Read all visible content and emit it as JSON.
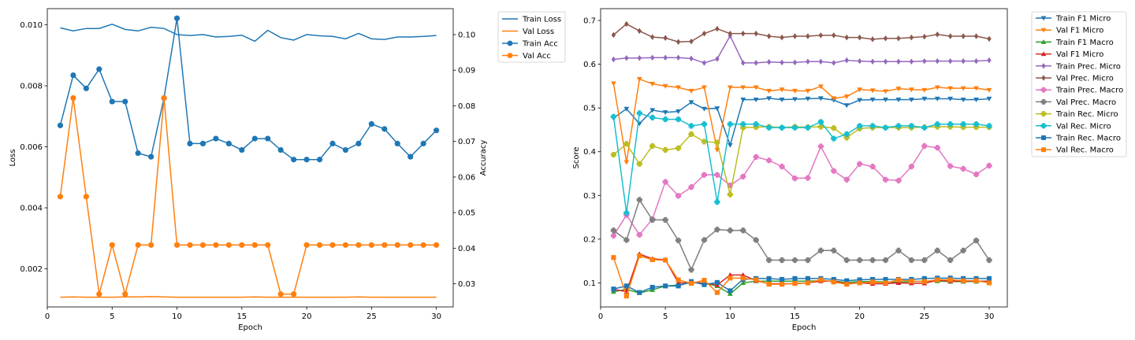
{
  "chart_data": [
    {
      "type": "line",
      "xlabel": "Epoch",
      "ylabel_left": "Loss",
      "ylabel_right": "Accuracy",
      "x": [
        1,
        2,
        3,
        4,
        5,
        6,
        7,
        8,
        9,
        10,
        11,
        12,
        13,
        14,
        15,
        16,
        17,
        18,
        19,
        20,
        21,
        22,
        23,
        24,
        25,
        26,
        27,
        28,
        29,
        30
      ],
      "xlim": [
        0.0,
        31.3
      ],
      "xticks": [
        0,
        5,
        10,
        15,
        20,
        25,
        30
      ],
      "ylim_left": [
        0.00075,
        0.01053
      ],
      "yticks_left": [
        "0.002",
        "0.004",
        "0.006",
        "0.008",
        "0.010"
      ],
      "ylim_right": [
        0.0235,
        0.1073
      ],
      "yticks_right": [
        "0.03",
        "0.04",
        "0.05",
        "0.06",
        "0.07",
        "0.08",
        "0.09",
        "0.10"
      ],
      "grid": false,
      "legend_position": "outside right, top",
      "series": [
        {
          "name": "Train Loss",
          "axis": "left",
          "color": "#1f77b4",
          "marker": "none",
          "values": [
            0.0099,
            0.0098,
            0.00988,
            0.00988,
            0.01002,
            0.00985,
            0.0098,
            0.00992,
            0.00988,
            0.00968,
            0.00965,
            0.00968,
            0.0096,
            0.00962,
            0.00966,
            0.00946,
            0.00982,
            0.00958,
            0.0095,
            0.00968,
            0.00964,
            0.00962,
            0.00954,
            0.00972,
            0.00954,
            0.00952,
            0.0096,
            0.0096,
            0.00962,
            0.00965
          ]
        },
        {
          "name": "Val Loss",
          "axis": "left",
          "color": "#ff7f0e",
          "marker": "none",
          "values": [
            0.00107,
            0.00108,
            0.00107,
            0.00107,
            0.00107,
            0.00108,
            0.00108,
            0.00109,
            0.00108,
            0.00107,
            0.00107,
            0.00107,
            0.00107,
            0.00107,
            0.00107,
            0.00108,
            0.00107,
            0.00107,
            0.00107,
            0.00107,
            0.00107,
            0.00107,
            0.00107,
            0.00108,
            0.00107,
            0.00107,
            0.00107,
            0.00107,
            0.00107,
            0.00107
          ]
        },
        {
          "name": "Train Acc",
          "axis": "right",
          "color": "#1f77b4",
          "marker": "circle",
          "values": [
            0.0745,
            0.0886,
            0.0849,
            0.0903,
            0.0812,
            0.0812,
            0.0667,
            0.0657,
            0.0822,
            0.1046,
            0.0694,
            0.0694,
            0.0708,
            0.0694,
            0.0676,
            0.0708,
            0.0708,
            0.0676,
            0.0649,
            0.0649,
            0.0649,
            0.0694,
            0.0676,
            0.0694,
            0.0749,
            0.0735,
            0.0694,
            0.0657,
            0.0694,
            0.0731
          ]
        },
        {
          "name": "Val Acc",
          "axis": "right",
          "color": "#ff7f0e",
          "marker": "circle",
          "values": [
            0.0545,
            0.0822,
            0.0545,
            0.0271,
            0.0409,
            0.0271,
            0.0409,
            0.0409,
            0.0822,
            0.0409,
            0.0409,
            0.0409,
            0.0409,
            0.0409,
            0.0409,
            0.0409,
            0.0409,
            0.0271,
            0.0271,
            0.0409,
            0.0409,
            0.0409,
            0.0409,
            0.0409,
            0.0409,
            0.0409,
            0.0409,
            0.0409,
            0.0409,
            0.0409
          ]
        }
      ]
    },
    {
      "type": "line",
      "xlabel": "Epoch",
      "ylabel": "Score",
      "x": [
        1,
        2,
        3,
        4,
        5,
        6,
        7,
        8,
        9,
        10,
        11,
        12,
        13,
        14,
        15,
        16,
        17,
        18,
        19,
        20,
        21,
        22,
        23,
        24,
        25,
        26,
        27,
        28,
        29,
        30
      ],
      "xlim": [
        0.0,
        31.4
      ],
      "xticks": [
        0,
        5,
        10,
        15,
        20,
        25,
        30
      ],
      "ylim": [
        0.045,
        0.727
      ],
      "yticks": [
        "0.1",
        "0.2",
        "0.3",
        "0.4",
        "0.5",
        "0.6",
        "0.7"
      ],
      "grid": false,
      "legend_position": "outside right, top",
      "series": [
        {
          "name": "Train F1 Micro",
          "color": "#1f77b4",
          "marker": "tri-down",
          "values": [
            0.477,
            0.498,
            0.464,
            0.495,
            0.49,
            0.492,
            0.513,
            0.498,
            0.499,
            0.415,
            0.519,
            0.519,
            0.522,
            0.519,
            0.52,
            0.521,
            0.522,
            0.518,
            0.506,
            0.518,
            0.519,
            0.519,
            0.519,
            0.519,
            0.521,
            0.521,
            0.521,
            0.519,
            0.519,
            0.521
          ]
        },
        {
          "name": "Val F1 Micro",
          "color": "#ff7f0e",
          "marker": "tri-down",
          "values": [
            0.556,
            0.376,
            0.566,
            0.555,
            0.55,
            0.547,
            0.539,
            0.547,
            0.404,
            0.547,
            0.547,
            0.547,
            0.539,
            0.542,
            0.539,
            0.539,
            0.549,
            0.522,
            0.526,
            0.542,
            0.54,
            0.538,
            0.544,
            0.542,
            0.541,
            0.547,
            0.545,
            0.545,
            0.545,
            0.541
          ]
        },
        {
          "name": "Train F1 Macro",
          "color": "#2ca02c",
          "marker": "tri-up",
          "values": [
            0.08,
            0.085,
            0.077,
            0.084,
            0.093,
            0.095,
            0.101,
            0.099,
            0.093,
            0.075,
            0.1,
            0.104,
            0.104,
            0.104,
            0.104,
            0.104,
            0.105,
            0.104,
            0.101,
            0.103,
            0.103,
            0.102,
            0.102,
            0.103,
            0.104,
            0.104,
            0.103,
            0.103,
            0.103,
            0.103
          ]
        },
        {
          "name": "Val F1 Micro",
          "color": "#d62728",
          "marker": "tri-up",
          "values": [
            0.085,
            0.08,
            0.166,
            0.155,
            0.153,
            0.1,
            0.1,
            0.1,
            0.095,
            0.118,
            0.118,
            0.105,
            0.098,
            0.098,
            0.098,
            0.1,
            0.104,
            0.104,
            0.098,
            0.1,
            0.098,
            0.098,
            0.1,
            0.099,
            0.099,
            0.106,
            0.104,
            0.104,
            0.104,
            0.104
          ]
        },
        {
          "name": "Train Prec. Micro",
          "color": "#9467bd",
          "marker": "diamond",
          "values": [
            0.611,
            0.614,
            0.614,
            0.615,
            0.615,
            0.615,
            0.613,
            0.603,
            0.612,
            0.665,
            0.603,
            0.603,
            0.605,
            0.604,
            0.604,
            0.606,
            0.606,
            0.603,
            0.609,
            0.607,
            0.606,
            0.606,
            0.606,
            0.606,
            0.607,
            0.607,
            0.607,
            0.607,
            0.607,
            0.609
          ]
        },
        {
          "name": "Val Prec. Micro",
          "color": "#8c564b",
          "marker": "diamond",
          "values": [
            0.667,
            0.692,
            0.676,
            0.662,
            0.66,
            0.651,
            0.652,
            0.67,
            0.681,
            0.67,
            0.67,
            0.67,
            0.664,
            0.661,
            0.664,
            0.664,
            0.666,
            0.666,
            0.661,
            0.661,
            0.657,
            0.659,
            0.659,
            0.661,
            0.663,
            0.668,
            0.664,
            0.664,
            0.664,
            0.658
          ]
        },
        {
          "name": "Train Prec. Macro",
          "color": "#e377c2",
          "marker": "plus",
          "values": [
            0.208,
            0.255,
            0.21,
            0.246,
            0.331,
            0.299,
            0.319,
            0.347,
            0.347,
            0.323,
            0.343,
            0.388,
            0.38,
            0.366,
            0.339,
            0.34,
            0.412,
            0.356,
            0.336,
            0.372,
            0.366,
            0.336,
            0.334,
            0.366,
            0.413,
            0.409,
            0.367,
            0.361,
            0.348,
            0.368
          ]
        },
        {
          "name": "Val Prec. Macro",
          "color": "#7f7f7f",
          "marker": "plus",
          "values": [
            0.22,
            0.198,
            0.29,
            0.244,
            0.244,
            0.197,
            0.13,
            0.198,
            0.222,
            0.22,
            0.22,
            0.198,
            0.152,
            0.152,
            0.152,
            0.152,
            0.174,
            0.174,
            0.152,
            0.152,
            0.152,
            0.152,
            0.174,
            0.152,
            0.152,
            0.174,
            0.152,
            0.174,
            0.197,
            0.152
          ]
        },
        {
          "name": "Train Rec. Micro",
          "color": "#bcbd22",
          "marker": "plus",
          "values": [
            0.393,
            0.418,
            0.372,
            0.413,
            0.404,
            0.408,
            0.44,
            0.423,
            0.421,
            0.302,
            0.455,
            0.456,
            0.457,
            0.455,
            0.457,
            0.456,
            0.457,
            0.454,
            0.432,
            0.453,
            0.455,
            0.455,
            0.455,
            0.455,
            0.456,
            0.457,
            0.457,
            0.456,
            0.456,
            0.456
          ]
        },
        {
          "name": "Val Rec. Micro",
          "color": "#17becf",
          "marker": "plus",
          "values": [
            0.48,
            0.26,
            0.488,
            0.478,
            0.474,
            0.474,
            0.459,
            0.463,
            0.285,
            0.463,
            0.463,
            0.463,
            0.455,
            0.455,
            0.455,
            0.455,
            0.468,
            0.43,
            0.44,
            0.459,
            0.459,
            0.455,
            0.459,
            0.459,
            0.455,
            0.463,
            0.463,
            0.463,
            0.463,
            0.459
          ]
        },
        {
          "name": "Train Rec. Macro",
          "color": "#1f77b4",
          "marker": "square",
          "values": [
            0.086,
            0.093,
            0.078,
            0.09,
            0.093,
            0.093,
            0.103,
            0.096,
            0.101,
            0.082,
            0.108,
            0.11,
            0.11,
            0.108,
            0.11,
            0.11,
            0.11,
            0.108,
            0.105,
            0.107,
            0.108,
            0.108,
            0.108,
            0.108,
            0.11,
            0.111,
            0.111,
            0.11,
            0.11,
            0.11
          ]
        },
        {
          "name": "Val Rec. Macro",
          "color": "#ff7f0e",
          "marker": "square",
          "values": [
            0.158,
            0.07,
            0.162,
            0.153,
            0.152,
            0.107,
            0.099,
            0.106,
            0.078,
            0.111,
            0.111,
            0.107,
            0.097,
            0.097,
            0.099,
            0.1,
            0.107,
            0.102,
            0.097,
            0.1,
            0.102,
            0.1,
            0.107,
            0.104,
            0.103,
            0.107,
            0.107,
            0.105,
            0.105,
            0.1
          ]
        }
      ]
    }
  ]
}
